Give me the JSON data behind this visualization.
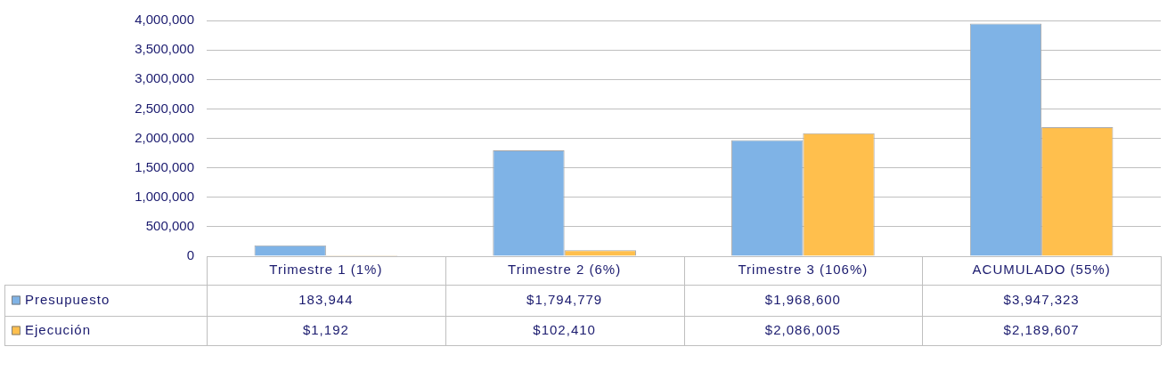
{
  "chart_data": {
    "type": "bar",
    "categories": [
      "Trimestre 1 (1%)",
      "Trimestre 2 (6%)",
      "Trimestre 3 (106%)",
      "ACUMULADO (55%)"
    ],
    "series": [
      {
        "name": "Presupuesto",
        "color": "#7fb3e6",
        "values": [
          183944,
          1794779,
          1968600,
          3947323
        ],
        "value_labels": [
          "183,944",
          "$1,794,779",
          "$1,968,600",
          "$3,947,323"
        ]
      },
      {
        "name": "Ejecución",
        "color": "#ffbf4d",
        "values": [
          1192,
          102410,
          2086005,
          2189607
        ],
        "value_labels": [
          "$1,192",
          "$102,410",
          "$2,086,005",
          "$2,189,607"
        ]
      }
    ],
    "ylim": [
      0,
      4000000
    ],
    "yticks": [
      0,
      {
        "value": 500000,
        "label": "500,000"
      },
      {
        "value": 1000000,
        "label": "1,000,000"
      },
      {
        "value": 1500000,
        "label": "1,500,000"
      },
      {
        "value": 2000000,
        "label": "2,000,000"
      },
      {
        "value": 2500000,
        "label": "2,500,000"
      },
      {
        "value": 3000000,
        "label": "3,000,000"
      },
      {
        "value": 3500000,
        "label": "3,500,000"
      },
      {
        "value": 4000000,
        "label": "4,000,000"
      }
    ],
    "grid": "y",
    "legend": "bottom"
  }
}
